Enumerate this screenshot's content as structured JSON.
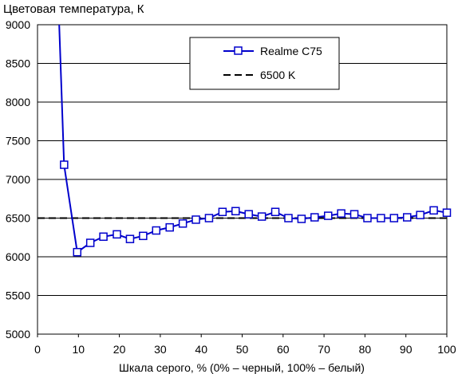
{
  "chart_data": {
    "type": "line",
    "title": "Цветовая температура, К",
    "xlabel": "Шкала серого, % (0% – черный, 100% – белый)",
    "ylabel": "",
    "xlim": [
      0,
      100
    ],
    "ylim": [
      5000,
      9000
    ],
    "x_ticks": [
      "0",
      "10",
      "20",
      "30",
      "40",
      "50",
      "60",
      "70",
      "80",
      "90",
      "100"
    ],
    "y_ticks": [
      "5000",
      "5500",
      "6000",
      "6500",
      "7000",
      "7500",
      "8000",
      "8500",
      "9000"
    ],
    "grid": "horizontal",
    "legend_position": "top-right",
    "series": [
      {
        "name": "Realme C75",
        "color": "#0000cc",
        "marker": "square",
        "x": [
          5.3,
          6.5,
          9.7,
          12.9,
          16.1,
          19.4,
          22.6,
          25.8,
          29.0,
          32.3,
          35.5,
          38.7,
          41.9,
          45.2,
          48.4,
          51.6,
          54.8,
          58.1,
          61.3,
          64.5,
          67.7,
          71.0,
          74.2,
          77.4,
          80.6,
          83.9,
          87.1,
          90.3,
          93.5,
          96.8,
          100
        ],
        "y": [
          9000,
          7190,
          6060,
          6180,
          6260,
          6290,
          6230,
          6270,
          6340,
          6380,
          6430,
          6480,
          6500,
          6580,
          6590,
          6550,
          6520,
          6580,
          6500,
          6490,
          6510,
          6530,
          6560,
          6550,
          6500,
          6500,
          6500,
          6510,
          6540,
          6600,
          6570
        ],
        "markers_from_index": 1
      },
      {
        "name": "6500 K",
        "color": "#000000",
        "dash": true,
        "x": [
          0,
          100
        ],
        "y": [
          6500,
          6500
        ]
      }
    ]
  }
}
